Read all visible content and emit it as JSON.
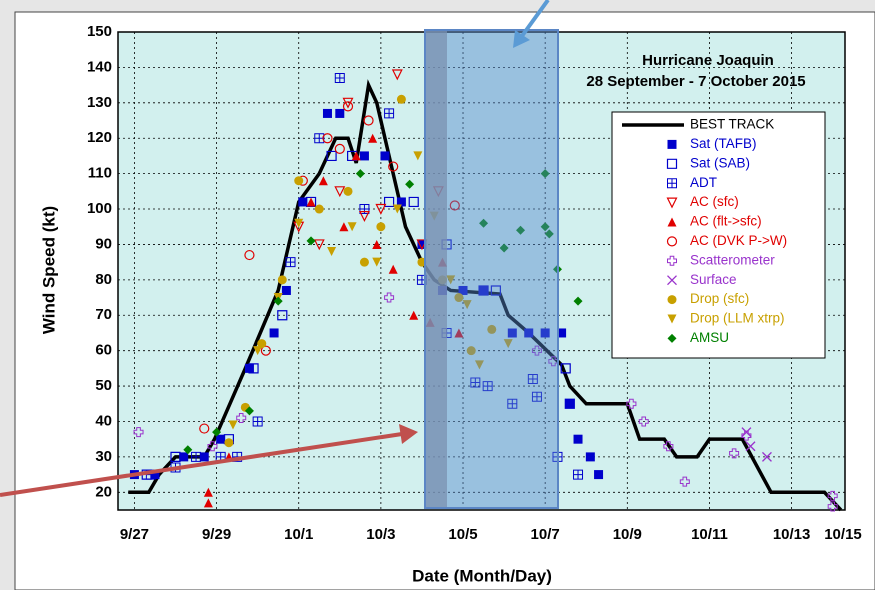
{
  "chart_data": {
    "type": "scatter",
    "title": "Hurricane Joaquin",
    "subtitle": "28 September - 7 October 2015",
    "x_label": "Date (Month/Day)",
    "y_label": "Wind Speed (kt)",
    "xlim": [
      -0.4,
      17.3
    ],
    "ylim": [
      15,
      150
    ],
    "xticks": [
      {
        "value": 0,
        "label": "9/27"
      },
      {
        "value": 2,
        "label": "9/29"
      },
      {
        "value": 4,
        "label": "10/1"
      },
      {
        "value": 6,
        "label": "10/3"
      },
      {
        "value": 8,
        "label": "10/5"
      },
      {
        "value": 10,
        "label": "10/7"
      },
      {
        "value": 12,
        "label": "10/9"
      },
      {
        "value": 14,
        "label": "10/11"
      },
      {
        "value": 16,
        "label": "10/13"
      },
      {
        "value": 18,
        "label": "10/15"
      }
    ],
    "yticks": [
      20,
      30,
      40,
      50,
      60,
      70,
      80,
      90,
      100,
      110,
      120,
      130,
      140,
      150
    ],
    "grid": true,
    "legend": "upper right",
    "series": [
      {
        "name": "BEST TRACK",
        "color": "#000000",
        "marker": "line",
        "x": [
          -0.15,
          0.35,
          0.6,
          1.0,
          1.7,
          1.95,
          2.7,
          3.5,
          4.0,
          4.5,
          4.9,
          5.2,
          5.4,
          5.7,
          5.9,
          6.6,
          7.0,
          7.3,
          7.7,
          8.9,
          9.1,
          9.6,
          10.4,
          10.6,
          11.0,
          12.0,
          12.3,
          12.9,
          13.2,
          13.7,
          14.0,
          14.8,
          15.5,
          16.8,
          17.2
        ],
        "y": [
          20,
          20,
          25,
          30,
          30,
          35,
          55,
          77,
          102,
          110,
          120,
          120,
          113,
          135,
          130,
          95,
          85,
          80,
          77,
          76,
          70,
          65,
          56,
          50,
          45,
          45,
          35,
          35,
          30,
          30,
          35,
          35,
          20,
          20,
          15
        ]
      },
      {
        "name": "Sat (TAFB)",
        "color": "#0000cc",
        "marker": "square",
        "x": [
          0,
          0.5,
          1.2,
          1.7,
          2.1,
          2.8,
          3.4,
          3.7,
          4.1,
          4.7,
          5.0,
          5.6,
          6.1,
          6.5,
          7.0,
          7.5,
          8.0,
          8.5,
          9.2,
          9.6,
          10.0,
          10.4,
          10.6,
          10.8,
          11.1,
          11.3
        ],
        "y": [
          25,
          25,
          30,
          30,
          35,
          55,
          65,
          77,
          102,
          127,
          127,
          115,
          115,
          102,
          90,
          77,
          77,
          77,
          65,
          65,
          65,
          65,
          45,
          35,
          30,
          25
        ]
      },
      {
        "name": "Sat (SAB)",
        "color": "#0000cc",
        "marker": "osquare",
        "x": [
          0.3,
          1.0,
          2.3,
          2.9,
          3.6,
          4.3,
          4.8,
          5.3,
          6.2,
          6.8,
          7.6,
          8.5,
          8.8,
          10.5,
          10.6
        ],
        "y": [
          25,
          30,
          35,
          55,
          70,
          102,
          115,
          115,
          102,
          102,
          90,
          77,
          77,
          55,
          45
        ]
      },
      {
        "name": "ADT",
        "color": "#0000cc",
        "marker": "adt",
        "x": [
          0.4,
          1.0,
          1.5,
          2.1,
          2.5,
          3.0,
          3.8,
          4.5,
          5.0,
          5.6,
          6.2,
          7.0,
          7.6,
          8.6,
          9.2,
          9.8,
          10.3,
          10.8,
          9.7,
          8.3
        ],
        "y": [
          25,
          27,
          30,
          30,
          30,
          40,
          85,
          120,
          137,
          100,
          127,
          80,
          65,
          50,
          45,
          47,
          30,
          25,
          52,
          51
        ]
      },
      {
        "name": "AC (sfc)",
        "color": "#e00000",
        "marker": "otri",
        "x": [
          4.5,
          5.0,
          5.6,
          6.0,
          6.4,
          7.0,
          7.4,
          4.0,
          5.2
        ],
        "y": [
          90,
          105,
          98,
          100,
          138,
          90,
          105,
          95,
          130
        ]
      },
      {
        "name": "AC (flt->sfc)",
        "color": "#e00000",
        "marker": "tri",
        "x": [
          1.8,
          1.8,
          2.3,
          4.3,
          4.6,
          5.1,
          5.4,
          5.9,
          6.3,
          6.8,
          7.2,
          7.5,
          7.9,
          5.8
        ],
        "y": [
          20,
          17,
          30,
          102,
          108,
          95,
          115,
          90,
          83,
          70,
          68,
          85,
          65,
          120
        ]
      },
      {
        "name": "AC (DVK P->W)",
        "color": "#e00000",
        "marker": "ocircle",
        "x": [
          1.7,
          2.8,
          3.2,
          4.1,
          4.7,
          5.2,
          5.7,
          6.3,
          7.8,
          5.0
        ],
        "y": [
          38,
          87,
          60,
          108,
          120,
          129,
          125,
          112,
          101,
          117
        ]
      },
      {
        "name": "Scatterometer",
        "color": "#9933cc",
        "marker": "plus",
        "x": [
          0.1,
          1.9,
          2.6,
          6.2,
          9.8,
          10.2,
          12.1,
          12.4,
          13.0,
          13.4,
          14.6,
          14.9,
          17.0,
          17.0
        ],
        "y": [
          37,
          33,
          41,
          75,
          60,
          57,
          45,
          40,
          33,
          23,
          31,
          36,
          19,
          16
        ]
      },
      {
        "name": "Surface",
        "color": "#9933cc",
        "marker": "x",
        "x": [
          14.9,
          15.0,
          15.4
        ],
        "y": [
          37,
          33,
          30
        ]
      },
      {
        "name": "Drop (sfc)",
        "color": "#c8a000",
        "marker": "circle",
        "x": [
          2.3,
          2.7,
          3.1,
          3.6,
          4.0,
          4.5,
          5.2,
          5.6,
          6.0,
          6.5,
          7.0,
          7.5,
          7.9,
          8.2,
          8.7
        ],
        "y": [
          34,
          44,
          62,
          80,
          108,
          100,
          105,
          85,
          95,
          131,
          85,
          80,
          75,
          60,
          66
        ]
      },
      {
        "name": "Drop (LLM xtrp)",
        "color": "#c8a000",
        "marker": "tri-down",
        "x": [
          2.4,
          3.0,
          3.5,
          4.0,
          4.8,
          5.3,
          5.9,
          6.4,
          6.9,
          7.3,
          7.7,
          8.1,
          8.4,
          9.1
        ],
        "y": [
          39,
          60,
          75,
          96,
          88,
          95,
          85,
          100,
          115,
          98,
          80,
          73,
          56,
          62
        ]
      },
      {
        "name": "AMSU",
        "color": "#008000",
        "marker": "diamond",
        "x": [
          1.3,
          2.0,
          2.8,
          3.5,
          4.3,
          5.5,
          6.7,
          8.5,
          9.0,
          9.4,
          10.0,
          10.1,
          10.3,
          10.8,
          10.0
        ],
        "y": [
          32,
          37,
          43,
          74,
          91,
          110,
          107,
          96,
          89,
          94,
          110,
          93,
          83,
          74,
          95
        ]
      }
    ]
  }
}
